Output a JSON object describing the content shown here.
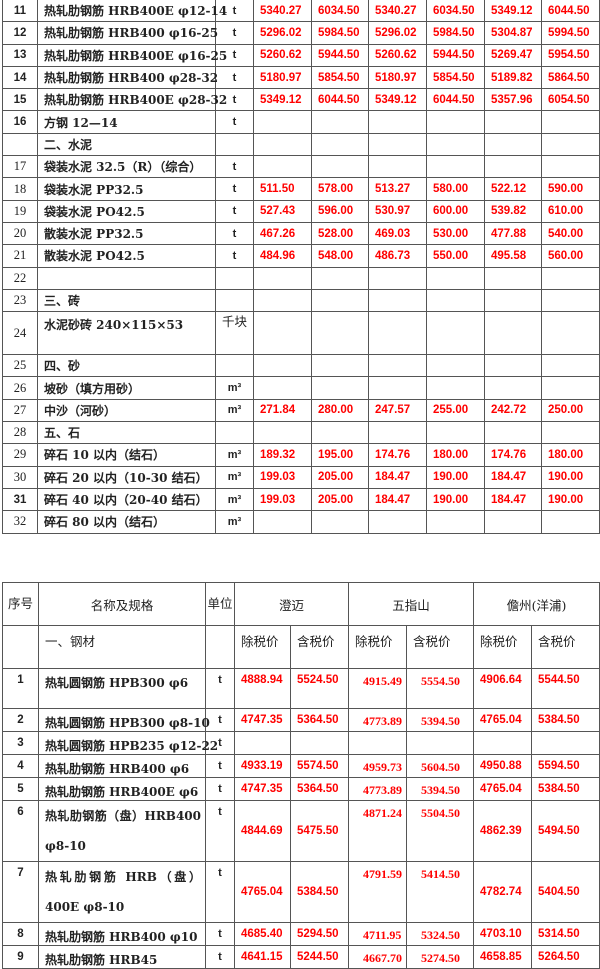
{
  "table1": {
    "rows": [
      {
        "no": "11",
        "bold": true,
        "name": "热轧肋钢筋 HRB400E φ12-14",
        "unit": "t",
        "values": [
          "5340.27",
          "6034.50",
          "5340.27",
          "6034.50",
          "5349.12",
          "6044.50"
        ]
      },
      {
        "no": "12",
        "bold": true,
        "name": "热轧肋钢筋 HRB400 φ16-25",
        "unit": "t",
        "values": [
          "5296.02",
          "5984.50",
          "5296.02",
          "5984.50",
          "5304.87",
          "5994.50"
        ]
      },
      {
        "no": "13",
        "bold": true,
        "name": "热轧肋钢筋 HRB400E φ16-25",
        "unit": "t",
        "values": [
          "5260.62",
          "5944.50",
          "5260.62",
          "5944.50",
          "5269.47",
          "5954.50"
        ]
      },
      {
        "no": "14",
        "bold": true,
        "name": "热轧肋钢筋 HRB400 φ28-32",
        "unit": "t",
        "values": [
          "5180.97",
          "5854.50",
          "5180.97",
          "5854.50",
          "5189.82",
          "5864.50"
        ]
      },
      {
        "no": "15",
        "bold": true,
        "name": "热轧肋钢筋 HRB400E φ28-32",
        "unit": "t",
        "values": [
          "5349.12",
          "6044.50",
          "5349.12",
          "6044.50",
          "5357.96",
          "6054.50"
        ]
      },
      {
        "no": "16",
        "bold": true,
        "name": "方钢 12—14",
        "unit": "t",
        "values": [
          "",
          "",
          "",
          "",
          "",
          ""
        ]
      },
      {
        "no": "",
        "bold": false,
        "name": "二、水泥",
        "unit": "",
        "values": [
          "",
          "",
          "",
          "",
          "",
          ""
        ]
      },
      {
        "no": "17",
        "bold": false,
        "name": "袋装水泥 32.5（R）（综合）",
        "unit": "t",
        "values": [
          "",
          "",
          "",
          "",
          "",
          ""
        ]
      },
      {
        "no": "18",
        "bold": false,
        "name": "袋装水泥 PP32.5",
        "unit": "t",
        "values": [
          "511.50",
          "578.00",
          "513.27",
          "580.00",
          "522.12",
          "590.00"
        ]
      },
      {
        "no": "19",
        "bold": false,
        "name": "袋装水泥 PO42.5",
        "unit": "t",
        "values": [
          "527.43",
          "596.00",
          "530.97",
          "600.00",
          "539.82",
          "610.00"
        ]
      },
      {
        "no": "20",
        "bold": false,
        "name": "散装水泥 PP32.5",
        "unit": "t",
        "values": [
          "467.26",
          "528.00",
          "469.03",
          "530.00",
          "477.88",
          "540.00"
        ]
      },
      {
        "no": "21",
        "bold": false,
        "name": "散装水泥 PO42.5",
        "unit": "t",
        "values": [
          "484.96",
          "548.00",
          "486.73",
          "550.00",
          "495.58",
          "560.00"
        ]
      },
      {
        "no": "22",
        "bold": false,
        "name": "",
        "unit": "",
        "values": [
          "",
          "",
          "",
          "",
          "",
          ""
        ]
      },
      {
        "no": "23",
        "bold": false,
        "name": "三、砖",
        "unit": "",
        "values": [
          "",
          "",
          "",
          "",
          "",
          ""
        ]
      },
      {
        "no": "24",
        "bold": false,
        "name": "水泥砂砖 240×115×53",
        "unit": "千块",
        "values": [
          "",
          "",
          "",
          "",
          "",
          ""
        ]
      },
      {
        "no": "25",
        "bold": false,
        "name": "四、砂",
        "unit": "",
        "values": [
          "",
          "",
          "",
          "",
          "",
          ""
        ]
      },
      {
        "no": "26",
        "bold": false,
        "name": "坡砂（填方用砂）",
        "unit": "m³",
        "values": [
          "",
          "",
          "",
          "",
          "",
          ""
        ]
      },
      {
        "no": "27",
        "bold": false,
        "name": "中沙（河砂）",
        "unit": "m³",
        "values": [
          "271.84",
          "280.00",
          "247.57",
          "255.00",
          "242.72",
          "250.00"
        ]
      },
      {
        "no": "28",
        "bold": false,
        "name": "五、石",
        "unit": "",
        "values": [
          "",
          "",
          "",
          "",
          "",
          ""
        ]
      },
      {
        "no": "29",
        "bold": false,
        "name": "碎石 10 以内（结石）",
        "unit": "m³",
        "values": [
          "189.32",
          "195.00",
          "174.76",
          "180.00",
          "174.76",
          "180.00"
        ]
      },
      {
        "no": "30",
        "bold": false,
        "name": "碎石 20 以内（10-30 结石）",
        "unit": "m³",
        "values": [
          "199.03",
          "205.00",
          "184.47",
          "190.00",
          "184.47",
          "190.00"
        ]
      },
      {
        "no": "31",
        "bold": true,
        "name": "碎石 40 以内（20-40 结石）",
        "unit": "m³",
        "values": [
          "199.03",
          "205.00",
          "184.47",
          "190.00",
          "184.47",
          "190.00"
        ]
      },
      {
        "no": "32",
        "bold": false,
        "name": "碎石 80 以内（结石）",
        "unit": "m³",
        "values": [
          "",
          "",
          "",
          "",
          "",
          ""
        ]
      }
    ]
  },
  "table2": {
    "header": {
      "no": "序号",
      "name": "名称及规格",
      "unit": "单位",
      "regions": [
        "澄迈",
        "五指山",
        "儋州(洋浦)"
      ]
    },
    "section": "一、钢材",
    "subheaders": [
      "除税价",
      "含税价",
      "除税价",
      "含税价",
      "除税价",
      "含税价"
    ],
    "rows": [
      {
        "no": "1",
        "name": "热轧圆钢筋 HPB300 φ6",
        "unit": "t",
        "values": [
          "4888.94",
          "5524.50",
          "4915.49",
          "5554.50",
          "4906.64",
          "5544.50"
        ]
      },
      {
        "no": "2",
        "name": "热轧圆钢筋 HPB300 φ8-10",
        "unit": "t",
        "values": [
          "4747.35",
          "5364.50",
          "4773.89",
          "5394.50",
          "4765.04",
          "5384.50"
        ]
      },
      {
        "no": "3",
        "name": "热轧圆钢筋 HPB235 φ12-22",
        "unit": "t",
        "values": [
          "",
          "",
          "",
          "",
          "",
          ""
        ]
      },
      {
        "no": "4",
        "name": "热轧肋钢筋 HRB400 φ6",
        "unit": "t",
        "values": [
          "4933.19",
          "5574.50",
          "4959.73",
          "5604.50",
          "4950.88",
          "5594.50"
        ]
      },
      {
        "no": "5",
        "name": "热轧肋钢筋 HRB400E φ6",
        "unit": "t",
        "values": [
          "4747.35",
          "5364.50",
          "4773.89",
          "5394.50",
          "4765.04",
          "5384.50"
        ]
      },
      {
        "no": "6",
        "name": "热轧肋钢筋（盘）HRB400 φ8-10",
        "unit": "t",
        "values": [
          "4844.69",
          "5475.50",
          "4871.24",
          "5504.50",
          "4862.39",
          "5494.50"
        ]
      },
      {
        "no": "7",
        "name": "热轧肋钢筋 HRB（盘）400E φ8-10",
        "unit": "t",
        "values": [
          "4765.04",
          "5384.50",
          "4791.59",
          "5414.50",
          "4782.74",
          "5404.50"
        ]
      },
      {
        "no": "8",
        "name": "热轧肋钢筋 HRB400 φ10",
        "unit": "t",
        "values": [
          "4685.40",
          "5294.50",
          "4711.95",
          "5324.50",
          "4703.10",
          "5314.50"
        ]
      },
      {
        "no": "9",
        "name": "热轧肋钢筋 HRB45",
        "unit": "t",
        "values": [
          "4641.15",
          "5244.50",
          "4667.70",
          "5274.50",
          "4658.85",
          "5264.50"
        ]
      }
    ]
  },
  "colors": {
    "price_text": "#ff0000",
    "border": "#555555"
  }
}
